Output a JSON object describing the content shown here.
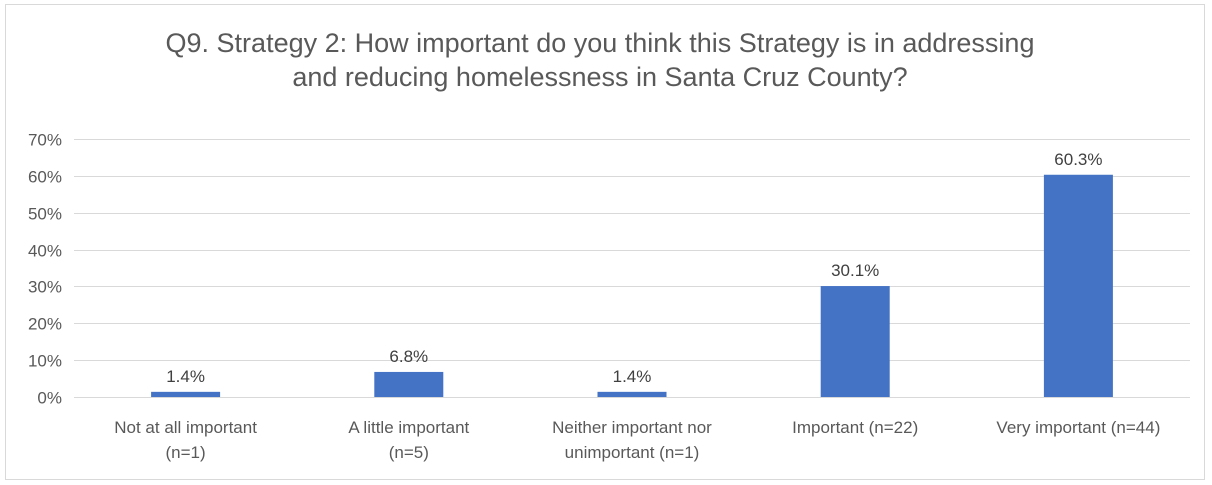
{
  "chart_data": {
    "type": "bar",
    "title_lines": [
      "Q9. Strategy 2: How important do you think this Strategy is in addressing",
      "and reducing homelessness in Santa Cruz County?"
    ],
    "categories": [
      [
        "Not at all important",
        "(n=1)"
      ],
      [
        "A little important",
        "(n=5)"
      ],
      [
        "Neither important nor",
        "unimportant (n=1)"
      ],
      [
        "Important (n=22)"
      ],
      [
        "Very important (n=44)"
      ]
    ],
    "values": [
      1.4,
      6.8,
      1.4,
      30.1,
      60.3
    ],
    "data_labels": [
      "1.4%",
      "6.8%",
      "1.4%",
      "30.1%",
      "60.3%"
    ],
    "ylim": [
      0,
      70
    ],
    "yticks": [
      0,
      10,
      20,
      30,
      40,
      50,
      60,
      70
    ],
    "ytick_labels": [
      "0%",
      "10%",
      "20%",
      "30%",
      "40%",
      "50%",
      "60%",
      "70%"
    ],
    "grid": true,
    "bar_color": "#4472c4",
    "grid_color": "#d9d9d9"
  }
}
